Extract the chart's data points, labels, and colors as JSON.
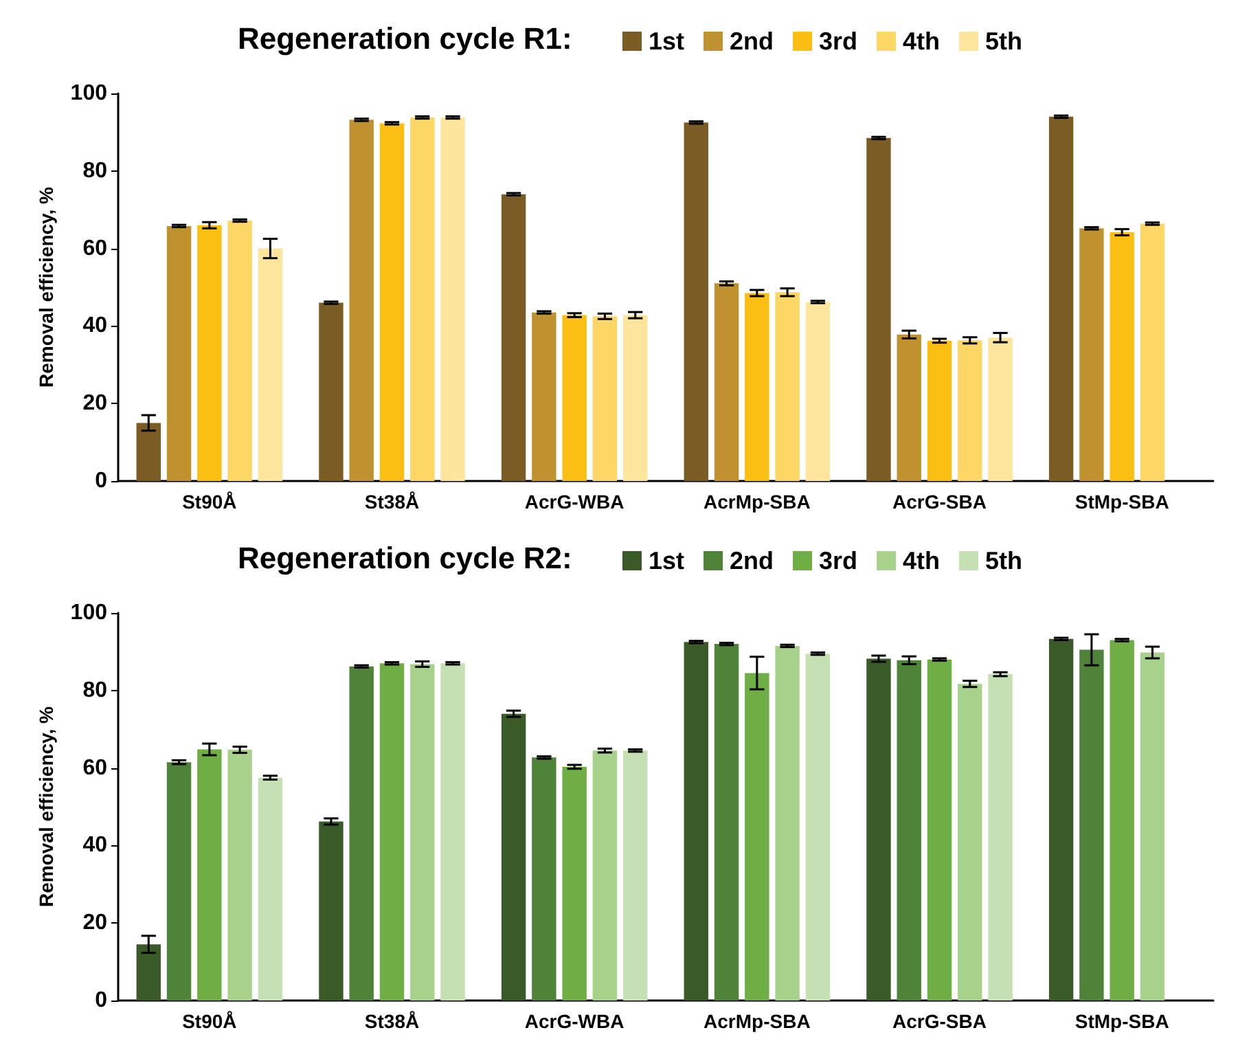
{
  "chart_data": [
    {
      "type": "bar",
      "title": "Regeneration cycle R1:",
      "ylabel": "Removal efficiency, %",
      "categories": [
        "St90Å",
        "St38Å",
        "AcrG-WBA",
        "AcrMp-SBA",
        "AcrG-SBA",
        "StMp-SBA"
      ],
      "ylim": [
        0,
        100
      ],
      "yticks": [
        0,
        20,
        40,
        60,
        80,
        100
      ],
      "grid": false,
      "legend": "top",
      "series": [
        {
          "name": "1st",
          "color": "#7b5c24",
          "values": [
            15,
            46,
            74,
            92.5,
            88.5,
            94
          ],
          "errors": [
            2,
            0.3,
            0.3,
            0.3,
            0.3,
            0.3
          ]
        },
        {
          "name": "2nd",
          "color": "#c0922f",
          "values": [
            65.8,
            93.2,
            43.5,
            51,
            37.8,
            65.2
          ],
          "errors": [
            0.3,
            0.3,
            0.3,
            0.5,
            1,
            0.3
          ]
        },
        {
          "name": "3rd",
          "color": "#fbbf14",
          "values": [
            66,
            92.3,
            42.8,
            48.5,
            36.2,
            64.2
          ],
          "errors": [
            0.8,
            0.3,
            0.5,
            0.8,
            0.5,
            0.8
          ]
        },
        {
          "name": "4th",
          "color": "#fdd766",
          "values": [
            67.2,
            93.8,
            42.5,
            48.7,
            36.3,
            66.4
          ],
          "errors": [
            0.3,
            0.3,
            0.7,
            1,
            0.8,
            0.3
          ]
        },
        {
          "name": "5th",
          "color": "#fde69b",
          "values": [
            60,
            93.8,
            42.8,
            46.2,
            37,
            null
          ],
          "errors": [
            2.5,
            0.3,
            0.8,
            0.3,
            1.2,
            null
          ]
        }
      ]
    },
    {
      "type": "bar",
      "title": "Regeneration cycle R2:",
      "ylabel": "Removal efficiency, %",
      "categories": [
        "St90Å",
        "St38Å",
        "AcrG-WBA",
        "AcrMp-SBA",
        "AcrG-SBA",
        "StMp-SBA"
      ],
      "ylim": [
        0,
        100
      ],
      "yticks": [
        0,
        20,
        40,
        60,
        80,
        100
      ],
      "grid": false,
      "legend": "top",
      "series": [
        {
          "name": "1st",
          "color": "#3a5a28",
          "values": [
            14.5,
            46.2,
            74,
            92.5,
            88.2,
            93.3
          ],
          "errors": [
            2.2,
            0.8,
            0.8,
            0.3,
            0.8,
            0.3
          ]
        },
        {
          "name": "2nd",
          "color": "#50833a",
          "values": [
            61.5,
            86.2,
            62.7,
            92,
            87.8,
            90.5
          ],
          "errors": [
            0.5,
            0.3,
            0.3,
            0.3,
            1,
            4
          ]
        },
        {
          "name": "3rd",
          "color": "#6fad45",
          "values": [
            64.8,
            87,
            60.3,
            84.5,
            88,
            93
          ],
          "errors": [
            1.5,
            0.3,
            0.5,
            4.2,
            0.3,
            0.3
          ]
        },
        {
          "name": "4th",
          "color": "#a8d18c",
          "values": [
            64.7,
            86.8,
            64.5,
            91.5,
            81.7,
            89.8
          ],
          "errors": [
            0.8,
            0.7,
            0.5,
            0.3,
            0.8,
            1.5
          ]
        },
        {
          "name": "5th",
          "color": "#c5e0b3",
          "values": [
            57.5,
            87,
            64.5,
            89.5,
            84.2,
            null
          ],
          "errors": [
            0.5,
            0.3,
            0.3,
            0.3,
            0.5,
            null
          ]
        }
      ]
    }
  ]
}
